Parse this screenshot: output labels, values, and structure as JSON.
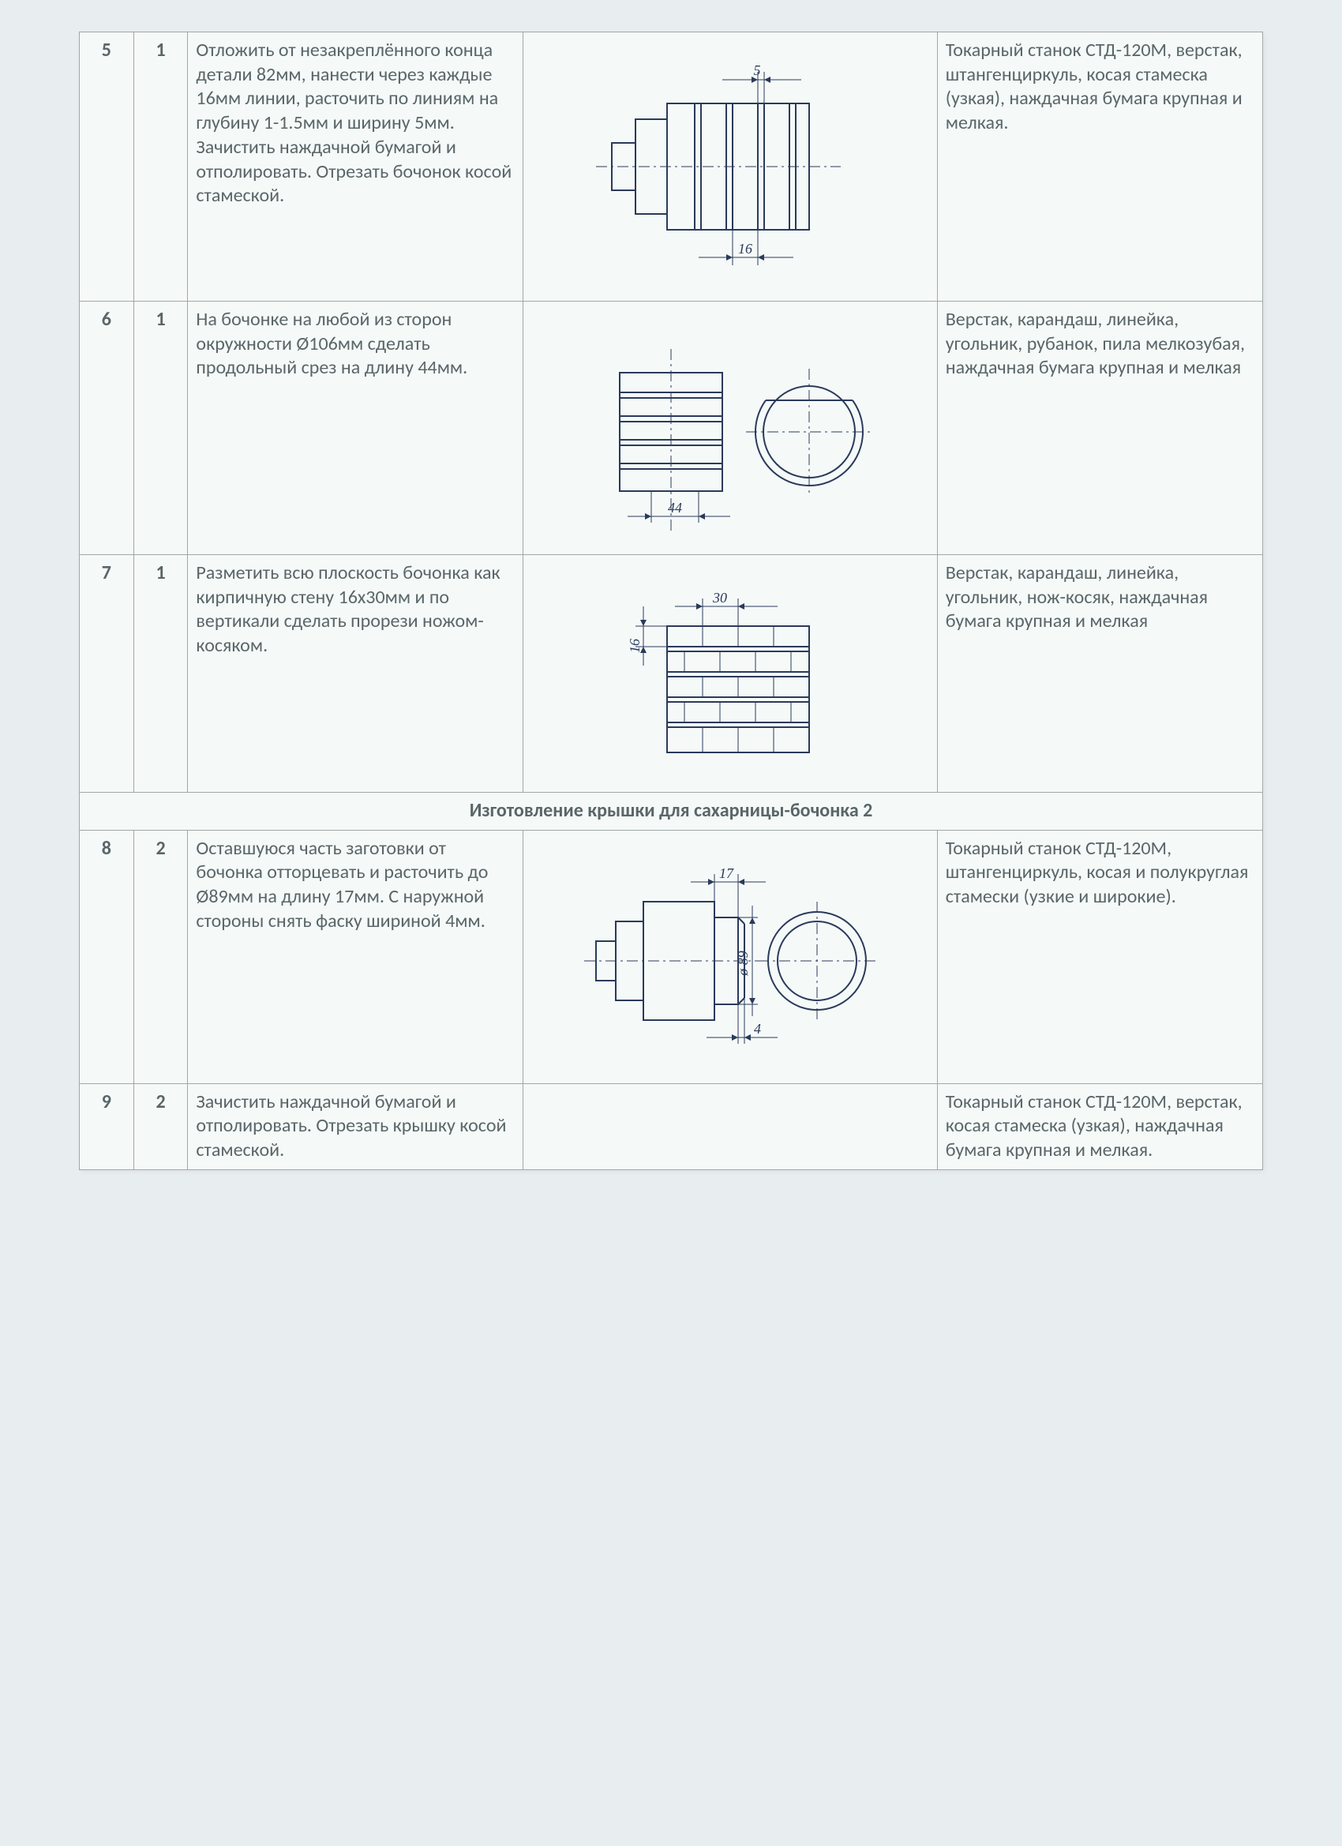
{
  "rows": [
    {
      "step": "5",
      "part": "1",
      "desc": "Отложить от незакреплённого конца детали 82мм, нанести через каждые 16мм линии, расточить по линиям на глубину 1-1.5мм и ширину 5мм. Зачистить наждачной бумагой и отполировать. Отрезать бочонок косой стамеской.",
      "tools": "Токарный станок СТД-120М, верстак, штангенциркуль, косая стамеска (узкая), наждачная бумага крупная и мелкая.",
      "drawing": "d5"
    },
    {
      "step": "6",
      "part": "1",
      "desc": "На бочонке на любой из сторон окружности Ø106мм сделать продольный срез на длину 44мм.",
      "tools": "Верстак, карандаш, линейка, угольник, рубанок, пила мелкозубая, наждачная бумага крупная и мелкая",
      "drawing": "d6"
    },
    {
      "step": "7",
      "part": "1",
      "desc": "Разметить всю плоскость бочонка как кирпичную стену 16х30мм и по вертикали сделать прорези ножом-косяком.",
      "tools": "Верстак, карандаш, линейка, угольник, нож-косяк, наждачная бумага крупная и мелкая",
      "drawing": "d7"
    }
  ],
  "section_header": "Изготовление крышки для сахарницы-бочонка 2",
  "rows2": [
    {
      "step": "8",
      "part": "2",
      "desc": "Оставшуюся часть заготовки от бочонка отторцевать и расточить до Ø89мм на длину 17мм. С наружной стороны снять фаску шириной 4мм.",
      "tools": "Токарный станок СТД-120М, штангенциркуль, косая и полукруглая стамески (узкие и широкие).",
      "drawing": "d8"
    },
    {
      "step": "9",
      "part": "2",
      "desc": "Зачистить наждачной бумагой и отполировать. Отрезать крышку косой стамеской.",
      "tools": "Токарный станок СТД-120М, верстак, косая стамеска (узкая), наждачная бумага крупная и мелкая.",
      "drawing": ""
    }
  ],
  "drawings": {
    "d5": {
      "dim_top": "5",
      "dim_bottom": "16"
    },
    "d6": {
      "dim_bottom": "44"
    },
    "d7": {
      "dim_top": "30",
      "dim_left": "16"
    },
    "d8": {
      "dim_top": "17",
      "dim_bottom": "4",
      "dim_dia": "ø 89"
    }
  },
  "colors": {
    "page_bg": "#f5f9f8",
    "border": "#a0a8a8",
    "text": "#5a6668",
    "drawing": "#2a3a5a"
  }
}
